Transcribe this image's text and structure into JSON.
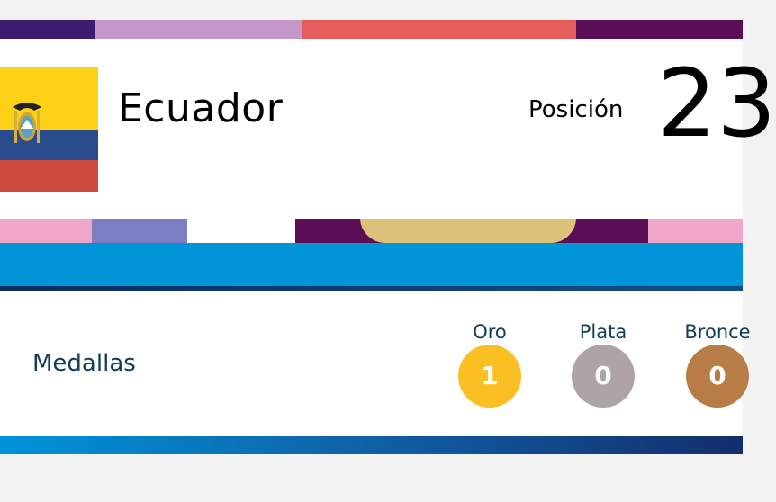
{
  "country": {
    "name": "Ecuador",
    "flag_icon": "ecuador-flag-icon"
  },
  "position": {
    "label": "Posición",
    "value": "23"
  },
  "medals": {
    "title": "Medallas",
    "items": [
      {
        "label": "Oro",
        "count": "1",
        "color": "#fbbf24"
      },
      {
        "label": "Plata",
        "count": "0",
        "color": "#aea4a7"
      },
      {
        "label": "Bronce",
        "count": "0",
        "color": "#b87c46"
      }
    ]
  },
  "colors": {
    "blue_band": "#0095d9",
    "banner_purple": "#5b0d55",
    "text_dark": "#123d55"
  }
}
